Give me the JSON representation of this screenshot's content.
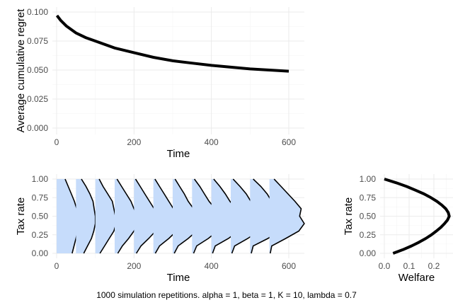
{
  "chart_data": [
    {
      "type": "line",
      "xlabel": "Time",
      "ylabel": "Average cumulative regret",
      "xlim": [
        0,
        640
      ],
      "ylim": [
        0,
        0.1
      ],
      "xticks": [
        "0",
        "200",
        "400",
        "600"
      ],
      "yticks": [
        "0.000",
        "0.025",
        "0.050",
        "0.075",
        "0.100"
      ],
      "grid": true,
      "series": [
        {
          "name": "regret",
          "x": [
            1,
            10,
            25,
            50,
            75,
            100,
            150,
            200,
            250,
            300,
            350,
            400,
            450,
            500,
            550,
            600
          ],
          "y": [
            0.097,
            0.093,
            0.088,
            0.082,
            0.078,
            0.075,
            0.069,
            0.065,
            0.061,
            0.058,
            0.056,
            0.054,
            0.0525,
            0.051,
            0.05,
            0.049
          ]
        }
      ]
    },
    {
      "type": "area",
      "subtype": "ridgeline-density",
      "xlabel": "Time",
      "ylabel": "Tax rate",
      "xlim": [
        0,
        640
      ],
      "ylim": [
        0,
        1
      ],
      "xticks": [
        "0",
        "200",
        "400",
        "600"
      ],
      "yticks": [
        "0.00",
        "0.25",
        "0.50",
        "0.75",
        "1.00"
      ],
      "grid": true,
      "fill_color": "#c6dcfb",
      "tax_levels": [
        0,
        0.1,
        0.2,
        0.3,
        0.4,
        0.5,
        0.6,
        0.7,
        0.8,
        0.9,
        1.0
      ],
      "ridges": [
        {
          "time": 0,
          "width": [
            40,
            45,
            50,
            54,
            56,
            55,
            52,
            46,
            38,
            30,
            22
          ]
        },
        {
          "time": 50,
          "width": [
            20,
            30,
            40,
            46,
            50,
            50,
            47,
            44,
            36,
            26,
            14
          ]
        },
        {
          "time": 100,
          "width": [
            12,
            24,
            36,
            48,
            54,
            52,
            48,
            44,
            32,
            20,
            10
          ]
        },
        {
          "time": 150,
          "width": [
            8,
            20,
            36,
            50,
            60,
            58,
            50,
            42,
            30,
            18,
            6
          ]
        },
        {
          "time": 200,
          "width": [
            6,
            18,
            38,
            56,
            66,
            62,
            52,
            40,
            28,
            16,
            4
          ]
        },
        {
          "time": 250,
          "width": [
            5,
            16,
            40,
            60,
            70,
            62,
            52,
            40,
            28,
            16,
            4
          ]
        },
        {
          "time": 300,
          "width": [
            4,
            14,
            40,
            62,
            74,
            60,
            54,
            40,
            30,
            18,
            6
          ]
        },
        {
          "time": 350,
          "width": [
            4,
            12,
            42,
            66,
            74,
            62,
            60,
            44,
            32,
            20,
            6
          ]
        },
        {
          "time": 400,
          "width": [
            3,
            10,
            44,
            70,
            78,
            62,
            64,
            48,
            36,
            22,
            6
          ]
        },
        {
          "time": 450,
          "width": [
            3,
            10,
            44,
            72,
            76,
            64,
            68,
            52,
            40,
            24,
            6
          ]
        },
        {
          "time": 500,
          "width": [
            3,
            8,
            46,
            76,
            82,
            64,
            72,
            56,
            44,
            28,
            8
          ]
        },
        {
          "time": 550,
          "width": [
            2,
            6,
            42,
            76,
            90,
            78,
            82,
            66,
            48,
            30,
            12
          ]
        }
      ]
    },
    {
      "type": "line",
      "xlabel": "Welfare",
      "ylabel": "Tax rate",
      "xlim": [
        0,
        0.27
      ],
      "ylim": [
        0,
        1
      ],
      "xticks": [
        "0.0",
        "0.1",
        "0.2"
      ],
      "yticks": [
        "0.00",
        "0.25",
        "0.50",
        "0.75",
        "1.00"
      ],
      "grid": true,
      "series": [
        {
          "name": "welfare",
          "tax": [
            0,
            0.05,
            0.1,
            0.15,
            0.2,
            0.25,
            0.3,
            0.35,
            0.4,
            0.45,
            0.5,
            0.55,
            0.6,
            0.65,
            0.7,
            0.75,
            0.8,
            0.85,
            0.9,
            0.95,
            1.0
          ],
          "welfare": [
            0.035,
            0.075,
            0.11,
            0.14,
            0.167,
            0.19,
            0.21,
            0.228,
            0.243,
            0.255,
            0.262,
            0.258,
            0.248,
            0.232,
            0.212,
            0.188,
            0.16,
            0.126,
            0.09,
            0.048,
            0.0
          ]
        }
      ]
    }
  ],
  "caption": "1000 simulation repetitions. alpha = 1, beta = 1, K = 10, lambda = 0.7"
}
